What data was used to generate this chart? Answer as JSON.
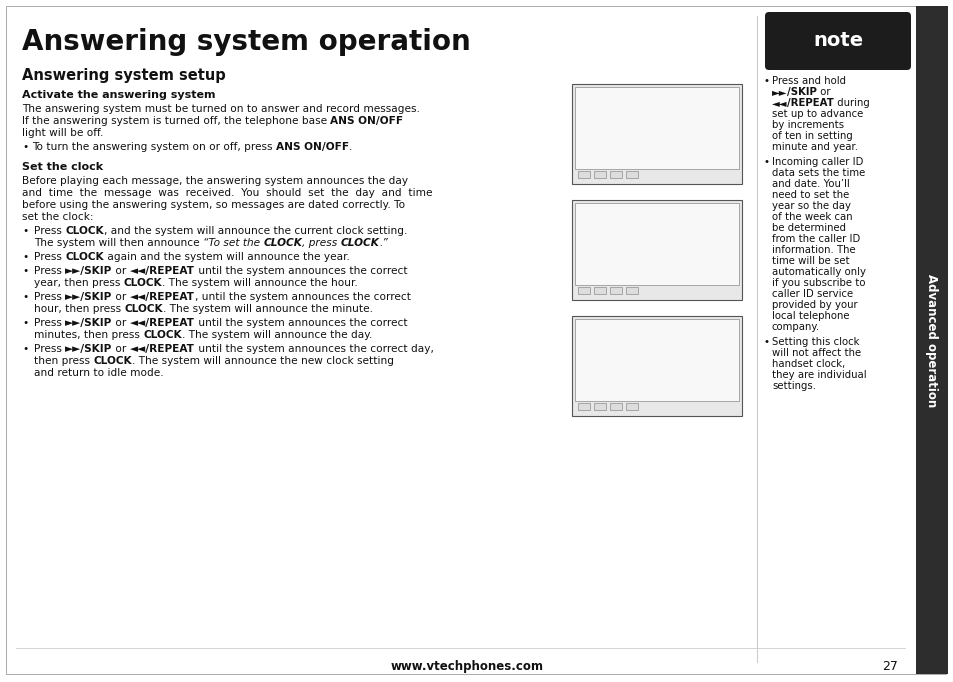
{
  "title": "Answering system operation",
  "subtitle": "Answering system setup",
  "bg_color": "#ffffff",
  "text_color": "#111111",
  "page_width": 9.54,
  "page_height": 6.82,
  "note_bg": "#1e1e1e",
  "note_text_color": "#ffffff",
  "sidebar_bg": "#2d2d2d",
  "sidebar_text": "Advanced operation",
  "page_number": "27",
  "website": "www.vtechphones.com",
  "dpi": 100
}
